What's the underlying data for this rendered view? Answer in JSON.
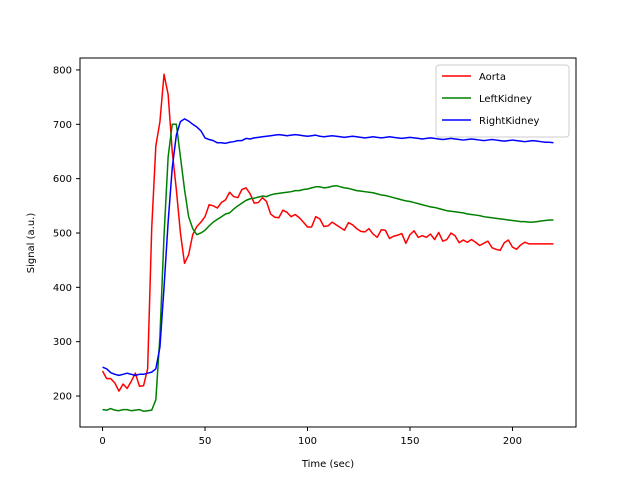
{
  "chart_data": {
    "type": "line",
    "title": "",
    "xlabel": "Time (sec)",
    "ylabel": "Signal (a.u.)",
    "xlim": [
      -11,
      231
    ],
    "ylim": [
      143,
      822
    ],
    "xticks": [
      0,
      50,
      100,
      150,
      200
    ],
    "yticks": [
      200,
      300,
      400,
      500,
      600,
      700,
      800
    ],
    "grid": false,
    "legend_position": "top-right",
    "x": [
      0,
      2,
      4,
      6,
      8,
      10,
      12,
      14,
      16,
      18,
      20,
      22,
      24,
      26,
      28,
      30,
      32,
      34,
      36,
      38,
      40,
      42,
      44,
      46,
      48,
      50,
      52,
      54,
      56,
      58,
      60,
      62,
      64,
      66,
      68,
      70,
      72,
      74,
      76,
      78,
      80,
      82,
      84,
      86,
      88,
      90,
      92,
      94,
      96,
      98,
      100,
      102,
      104,
      106,
      108,
      110,
      112,
      114,
      116,
      118,
      120,
      122,
      124,
      126,
      128,
      130,
      132,
      134,
      136,
      138,
      140,
      142,
      144,
      146,
      148,
      150,
      152,
      154,
      156,
      158,
      160,
      162,
      164,
      166,
      168,
      170,
      172,
      174,
      176,
      178,
      180,
      182,
      184,
      186,
      188,
      190,
      192,
      194,
      196,
      198,
      200,
      202,
      204,
      206,
      208,
      210,
      212,
      214,
      216,
      218,
      220
    ],
    "series": [
      {
        "name": "Aorta",
        "color": "#ff0000",
        "values": [
          246,
          232,
          232,
          224,
          209,
          222,
          214,
          227,
          242,
          218,
          219,
          250,
          510,
          660,
          705,
          792,
          755,
          650,
          580,
          500,
          444,
          460,
          497,
          512,
          520,
          530,
          552,
          550,
          546,
          556,
          561,
          575,
          567,
          565,
          580,
          583,
          572,
          555,
          556,
          565,
          558,
          535,
          529,
          528,
          542,
          538,
          530,
          534,
          528,
          520,
          511,
          511,
          530,
          526,
          512,
          513,
          520,
          515,
          510,
          505,
          519,
          515,
          508,
          503,
          502,
          508,
          498,
          492,
          506,
          505,
          490,
          494,
          496,
          499,
          481,
          497,
          504,
          492,
          495,
          492,
          498,
          488,
          501,
          485,
          488,
          500,
          495,
          482,
          487,
          483,
          488,
          483,
          477,
          481,
          485,
          473,
          470,
          468,
          482,
          487,
          474,
          470,
          478,
          483,
          480,
          480,
          480,
          480,
          480,
          480,
          480
        ],
        "values_note": ""
      },
      {
        "name": "LeftKidney",
        "color": "#008000",
        "values": [
          175,
          174,
          177,
          174,
          173,
          175,
          175,
          173,
          174,
          175,
          172,
          173,
          174,
          193,
          310,
          495,
          640,
          700,
          700,
          640,
          580,
          530,
          508,
          497,
          500,
          505,
          513,
          520,
          525,
          530,
          535,
          537,
          544,
          550,
          555,
          560,
          563,
          564,
          566,
          568,
          567,
          570,
          572,
          573,
          574,
          575,
          576,
          578,
          578,
          580,
          581,
          583,
          585,
          585,
          583,
          584,
          586,
          587,
          585,
          583,
          582,
          580,
          578,
          577,
          576,
          575,
          574,
          572,
          570,
          569,
          567,
          565,
          563,
          561,
          559,
          558,
          556,
          554,
          552,
          550,
          548,
          547,
          545,
          543,
          541,
          540,
          539,
          538,
          537,
          535,
          534,
          533,
          532,
          530,
          529,
          528,
          527,
          526,
          525,
          524,
          523,
          522,
          521,
          521,
          520,
          520,
          521,
          522,
          523,
          524,
          524
        ],
        "values_note": ""
      },
      {
        "name": "RightKidney",
        "color": "#0000ff",
        "values": [
          253,
          250,
          243,
          240,
          238,
          240,
          242,
          240,
          238,
          240,
          240,
          242,
          244,
          250,
          290,
          400,
          520,
          620,
          680,
          705,
          710,
          706,
          700,
          695,
          688,
          675,
          672,
          670,
          666,
          666,
          665,
          667,
          668,
          670,
          670,
          674,
          673,
          675,
          676,
          677,
          678,
          679,
          680,
          681,
          680,
          679,
          680,
          681,
          680,
          679,
          678,
          679,
          680,
          678,
          677,
          678,
          679,
          678,
          677,
          676,
          677,
          678,
          677,
          676,
          675,
          676,
          677,
          676,
          675,
          676,
          677,
          676,
          675,
          674,
          675,
          676,
          675,
          674,
          673,
          674,
          675,
          674,
          673,
          672,
          673,
          674,
          673,
          672,
          671,
          672,
          673,
          672,
          671,
          670,
          671,
          672,
          671,
          670,
          669,
          670,
          671,
          670,
          669,
          668,
          669,
          670,
          669,
          668,
          667,
          667,
          666
        ],
        "values_note": ""
      }
    ]
  }
}
